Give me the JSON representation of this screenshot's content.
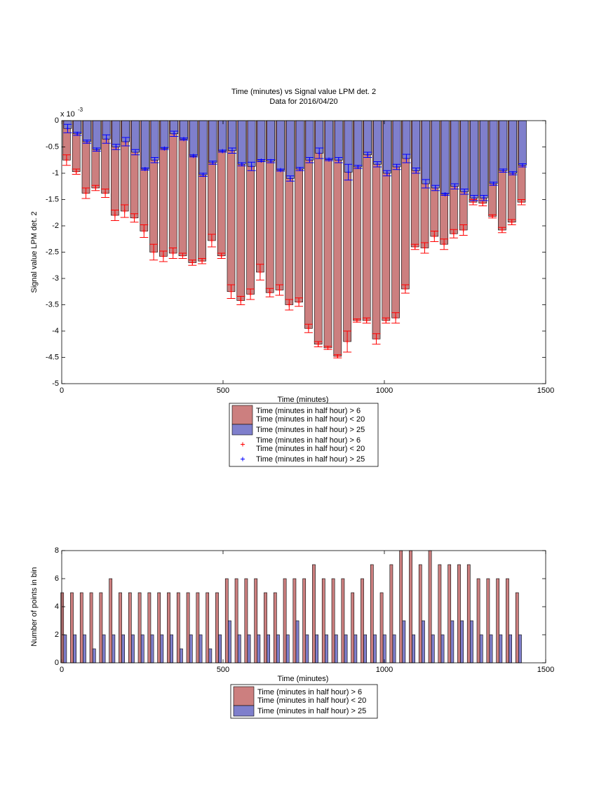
{
  "chart_data": [
    {
      "type": "bar",
      "barmode": "overlay",
      "title": "Time (minutes) vs Signal value LPM det. 2",
      "subtitle": "Data for 2016/04/20",
      "xlabel": "Time (minutes)",
      "ylabel": "Signal value LPM det. 2",
      "y_multiplier": "x 10",
      "y_multiplier_exponent": "-3",
      "x": [
        15,
        45,
        75,
        105,
        135,
        165,
        195,
        225,
        255,
        285,
        315,
        345,
        375,
        405,
        435,
        465,
        495,
        525,
        555,
        585,
        615,
        645,
        675,
        705,
        735,
        765,
        795,
        825,
        855,
        885,
        915,
        945,
        975,
        1005,
        1035,
        1065,
        1095,
        1125,
        1155,
        1185,
        1215,
        1245,
        1275,
        1305,
        1335,
        1365,
        1395,
        1425
      ],
      "xlim": [
        0,
        1500
      ],
      "xticks": [
        0,
        500,
        1000,
        1500
      ],
      "ylim": [
        -5,
        0
      ],
      "yticks": [
        -5,
        -4.5,
        -4,
        -3.5,
        -3,
        -2.5,
        -2,
        -1.5,
        -1,
        -0.5,
        0
      ],
      "series": [
        {
          "name": [
            "Time (minutes in half hour) > 6",
            "Time (minutes in half hour) < 20"
          ],
          "errorbar_label": [
            "Time (minutes in half hour) > 6",
            "Time (minutes in half hour) < 20"
          ],
          "color": "#cc7f7f",
          "errorbar_color": "#ff0000",
          "values": [
            -0.75,
            -0.97,
            -1.38,
            -1.28,
            -1.38,
            -1.8,
            -1.72,
            -1.85,
            -2.1,
            -2.5,
            -2.58,
            -2.52,
            -2.57,
            -2.7,
            -2.67,
            -2.28,
            -2.57,
            -3.25,
            -3.42,
            -3.3,
            -2.88,
            -3.27,
            -3.22,
            -3.5,
            -3.45,
            -3.95,
            -4.25,
            -4.32,
            -4.48,
            -4.2,
            -3.8,
            -3.8,
            -4.15,
            -3.8,
            -3.75,
            -3.2,
            -2.4,
            -2.42,
            -2.2,
            -2.35,
            -2.15,
            -2.08,
            -1.55,
            -1.57,
            -1.82,
            -2.08,
            -1.93,
            -1.55
          ],
          "errors": [
            0.1,
            0.05,
            0.1,
            0.05,
            0.08,
            0.1,
            0.12,
            0.08,
            0.12,
            0.15,
            0.1,
            0.1,
            0.05,
            0.05,
            0.05,
            0.12,
            0.05,
            0.13,
            0.08,
            0.1,
            0.15,
            0.08,
            0.1,
            0.1,
            0.08,
            0.08,
            0.05,
            0.03,
            0.03,
            0.2,
            0.03,
            0.05,
            0.1,
            0.05,
            0.1,
            0.08,
            0.05,
            0.1,
            0.1,
            0.1,
            0.08,
            0.1,
            0.05,
            0.05,
            0.03,
            0.05,
            0.05,
            0.05
          ]
        },
        {
          "name": [
            "Time (minutes in half hour) > 25"
          ],
          "errorbar_label": [
            "Time (minutes in half hour) > 25"
          ],
          "color": "#7f7fcc",
          "errorbar_color": "#0000ff",
          "values": [
            -0.15,
            -0.25,
            -0.4,
            -0.55,
            -0.35,
            -0.5,
            -0.4,
            -0.6,
            -0.92,
            -0.75,
            -0.53,
            -0.25,
            -0.35,
            -0.67,
            -1.03,
            -0.8,
            -0.58,
            -0.57,
            -0.83,
            -0.87,
            -0.76,
            -0.77,
            -0.94,
            -1.1,
            -0.92,
            -0.75,
            -0.62,
            -0.74,
            -0.75,
            -0.98,
            -0.88,
            -0.65,
            -0.83,
            -1.0,
            -0.88,
            -0.72,
            -0.95,
            -1.2,
            -1.28,
            -1.4,
            -1.25,
            -1.35,
            -1.47,
            -1.47,
            -1.2,
            -0.95,
            -1.0,
            -0.85
          ],
          "errors": [
            0.08,
            0.03,
            0.03,
            0.03,
            0.08,
            0.05,
            0.08,
            0.05,
            0.02,
            0.05,
            0.02,
            0.05,
            0.02,
            0.02,
            0.03,
            0.03,
            0.02,
            0.05,
            0.03,
            0.08,
            0.02,
            0.03,
            0.02,
            0.05,
            0.03,
            0.05,
            0.1,
            0.02,
            0.05,
            0.15,
            0.03,
            0.05,
            0.05,
            0.05,
            0.05,
            0.08,
            0.05,
            0.08,
            0.05,
            0.02,
            0.05,
            0.05,
            0.05,
            0.05,
            0.03,
            0.03,
            0.03,
            0.03
          ]
        }
      ]
    },
    {
      "type": "bar",
      "barmode": "group",
      "xlabel": "Time (minutes)",
      "ylabel": "Number of points in bin",
      "x": [
        15,
        45,
        75,
        105,
        135,
        165,
        195,
        225,
        255,
        285,
        315,
        345,
        375,
        405,
        435,
        465,
        495,
        525,
        555,
        585,
        615,
        645,
        675,
        705,
        735,
        765,
        795,
        825,
        855,
        885,
        915,
        945,
        975,
        1005,
        1035,
        1065,
        1095,
        1125,
        1155,
        1185,
        1215,
        1245,
        1275,
        1305,
        1335,
        1365,
        1395,
        1425
      ],
      "xlim": [
        0,
        1500
      ],
      "xticks": [
        0,
        500,
        1000,
        1500
      ],
      "ylim": [
        0,
        8
      ],
      "yticks": [
        0,
        2,
        4,
        6,
        8
      ],
      "series": [
        {
          "name": [
            "Time (minutes in half hour) > 6",
            "Time (minutes in half hour) < 20"
          ],
          "color": "#cc7f7f",
          "values": [
            5,
            5,
            5,
            5,
            5,
            6,
            5,
            5,
            5,
            5,
            5,
            5,
            5,
            5,
            5,
            5,
            5,
            6,
            6,
            6,
            6,
            5,
            5,
            6,
            6,
            6,
            7,
            6,
            6,
            6,
            5,
            6,
            7,
            5,
            7,
            8,
            8,
            7,
            8,
            7,
            7,
            7,
            7,
            6,
            6,
            6,
            6,
            5
          ]
        },
        {
          "name": [
            "Time (minutes in half hour) > 25"
          ],
          "color": "#7f7fcc",
          "values": [
            2,
            2,
            2,
            1,
            2,
            2,
            2,
            2,
            2,
            2,
            2,
            2,
            1,
            2,
            2,
            1,
            2,
            3,
            2,
            2,
            2,
            2,
            2,
            2,
            3,
            2,
            2,
            2,
            2,
            2,
            2,
            2,
            2,
            2,
            2,
            3,
            2,
            3,
            2,
            2,
            3,
            3,
            3,
            2,
            2,
            2,
            2,
            2
          ]
        }
      ]
    }
  ]
}
